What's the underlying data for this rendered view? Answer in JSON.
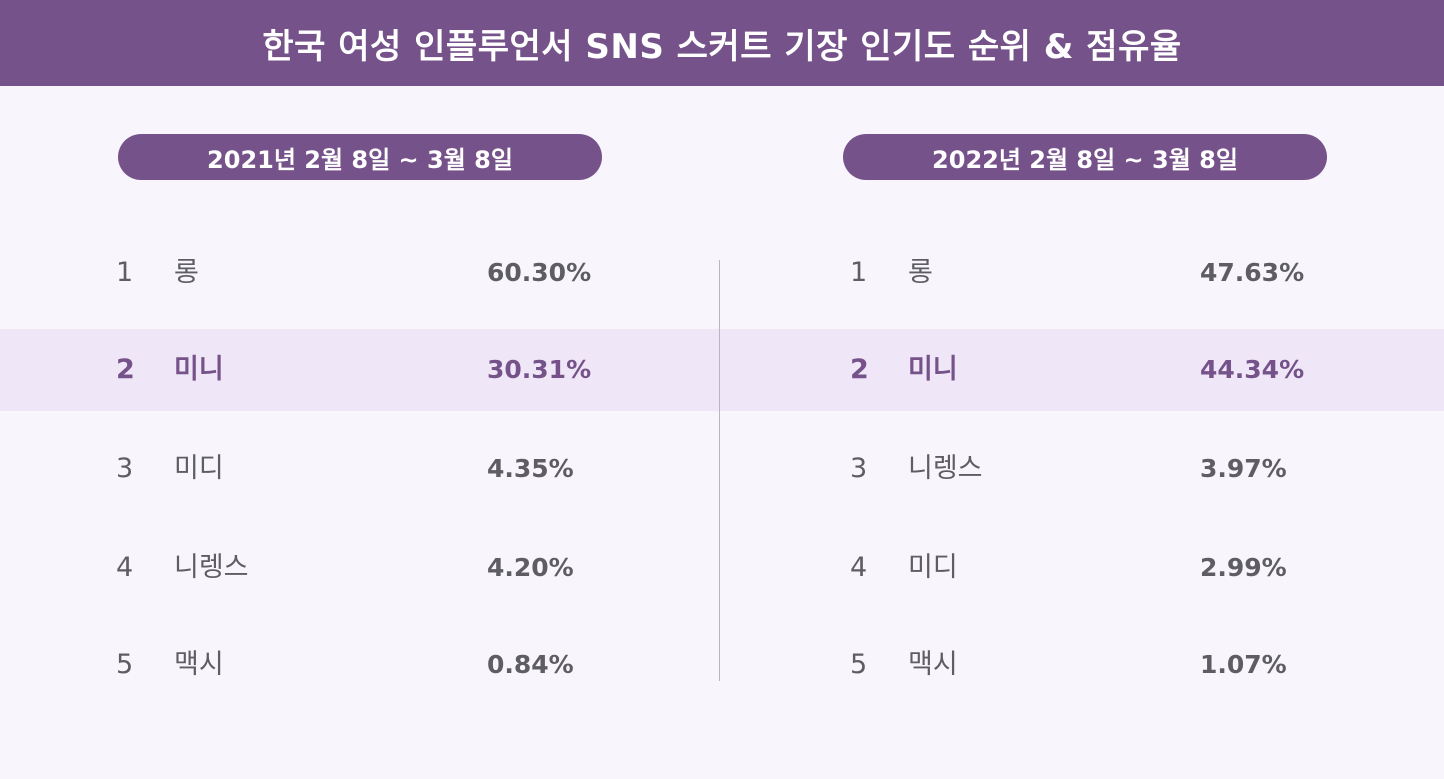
{
  "title": "한국 여성 인플루언서 SNS 스커트 기장 인기도 순위 & 점유율",
  "colors": {
    "accent": "#76528a",
    "highlight_band": "#efe6f7",
    "background": "#f8f5fd",
    "text": "#5e5e62"
  },
  "chart_data": {
    "type": "table",
    "highlight_rank": 2,
    "tables": [
      {
        "period": "2021년 2월 8일 ~ 3월 8일",
        "rows": [
          {
            "rank": "1",
            "name": "롱",
            "share": "60.30%"
          },
          {
            "rank": "2",
            "name": "미니",
            "share": "30.31%"
          },
          {
            "rank": "3",
            "name": "미디",
            "share": "4.35%"
          },
          {
            "rank": "4",
            "name": "니렝스",
            "share": "4.20%"
          },
          {
            "rank": "5",
            "name": "맥시",
            "share": "0.84%"
          }
        ]
      },
      {
        "period": "2022년 2월 8일 ~ 3월 8일",
        "rows": [
          {
            "rank": "1",
            "name": "롱",
            "share": "47.63%"
          },
          {
            "rank": "2",
            "name": "미니",
            "share": "44.34%"
          },
          {
            "rank": "3",
            "name": "니렝스",
            "share": "3.97%"
          },
          {
            "rank": "4",
            "name": "미디",
            "share": "2.99%"
          },
          {
            "rank": "5",
            "name": "맥시",
            "share": "1.07%"
          }
        ]
      }
    ]
  }
}
